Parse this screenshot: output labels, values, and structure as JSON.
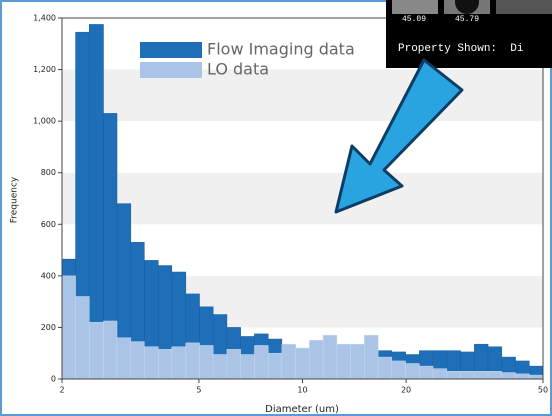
{
  "chart_data": {
    "type": "histogram",
    "x_label": "Diameter (um)",
    "y_label": "Frequency",
    "log_x": true,
    "grid": true,
    "bins": [
      2.0,
      2.19,
      2.4,
      2.64,
      2.89,
      3.17,
      3.47,
      3.81,
      4.17,
      4.58,
      5.02,
      5.5,
      6.03,
      6.61,
      7.25,
      7.95,
      8.71,
      9.55,
      10.47,
      11.48,
      12.59,
      13.8,
      15.13,
      16.59,
      18.18,
      19.94,
      21.86,
      23.96,
      26.27,
      28.8,
      31.58,
      34.62,
      37.95,
      41.61,
      45.62,
      50.0
    ],
    "series": [
      {
        "name": "Flow Imaging data",
        "color": "#1f6fb8",
        "values": [
          465,
          1345,
          1375,
          1030,
          680,
          530,
          460,
          440,
          415,
          330,
          280,
          250,
          200,
          165,
          175,
          155,
          130,
          110,
          100,
          90,
          80,
          80,
          60,
          110,
          105,
          95,
          110,
          110,
          110,
          105,
          135,
          125,
          85,
          70,
          50
        ]
      },
      {
        "name": "LO data",
        "color": "#a9c4e6",
        "values": [
          400,
          320,
          220,
          225,
          160,
          145,
          125,
          115,
          125,
          140,
          130,
          95,
          115,
          95,
          130,
          100,
          135,
          120,
          150,
          170,
          135,
          135,
          170,
          85,
          70,
          60,
          50,
          40,
          30,
          30,
          30,
          30,
          25,
          20,
          15
        ]
      }
    ],
    "xlim": [
      2,
      50
    ],
    "xticks": [
      2,
      5,
      10,
      20,
      50
    ],
    "ylim": [
      0,
      1400
    ],
    "yticks": [
      0,
      200,
      400,
      600,
      800,
      {
        "value": 1000,
        "label": "1,000"
      },
      {
        "value": 1200,
        "label": "1,200"
      },
      {
        "value": 1400,
        "label": "1,400"
      }
    ]
  },
  "overlay": {
    "thumb_labels": [
      "45.09",
      "45.79"
    ],
    "property_text": "Property Shown:  Di"
  }
}
